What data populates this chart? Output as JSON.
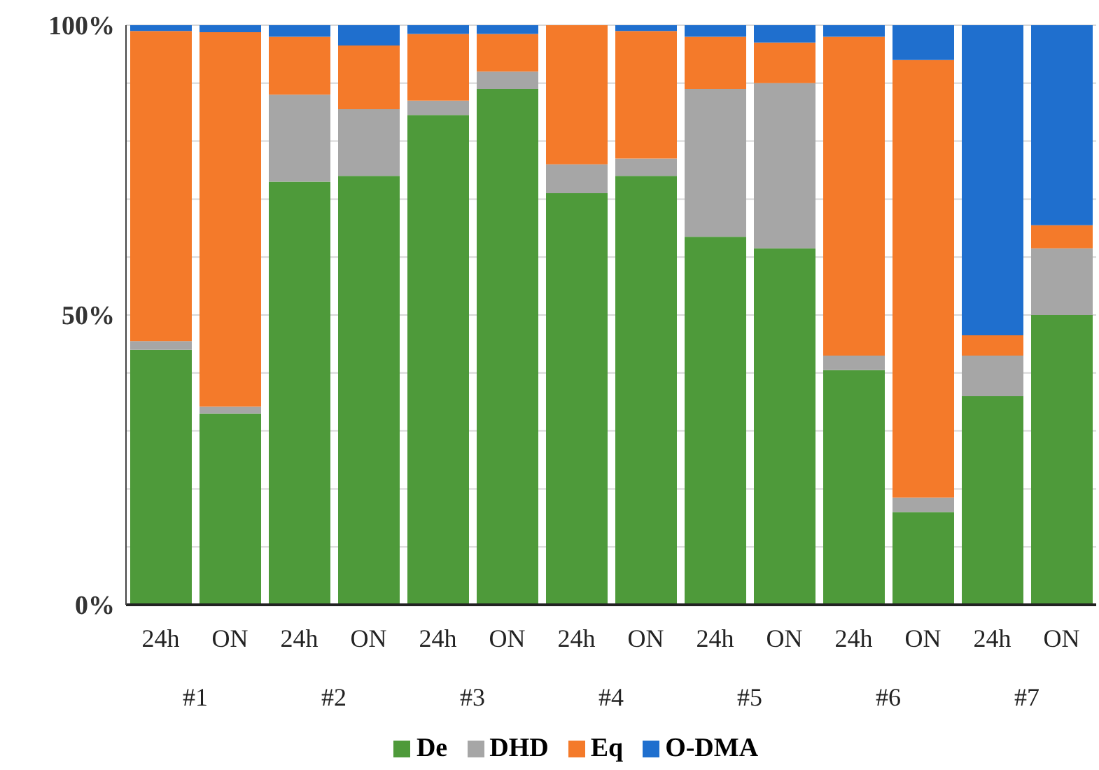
{
  "chart_data": {
    "type": "bar",
    "stacked": true,
    "categories": [
      "24h",
      "ON",
      "24h",
      "ON",
      "24h",
      "ON",
      "24h",
      "ON",
      "24h",
      "ON",
      "24h",
      "ON",
      "24h",
      "ON"
    ],
    "annotations": [
      "#1",
      "#2",
      "#3",
      "#4",
      "#5",
      "#6",
      "#7"
    ],
    "series": [
      {
        "name": "De",
        "color": "#4e9a3a",
        "values": [
          44,
          33,
          73,
          74,
          84.5,
          89,
          71,
          74,
          63.5,
          61.5,
          40.5,
          16,
          36,
          50
        ]
      },
      {
        "name": "DHD",
        "color": "#a6a6a6",
        "values": [
          1.5,
          1.2,
          15,
          11.5,
          2.5,
          3,
          5,
          3,
          25.5,
          28.5,
          2.5,
          2.5,
          7,
          11.5
        ]
      },
      {
        "name": "Eq",
        "color": "#f47a2a",
        "values": [
          53.5,
          64.6,
          10,
          11,
          11.5,
          6.5,
          24,
          22,
          9,
          7,
          55,
          75.5,
          3.5,
          4
        ]
      },
      {
        "name": "O-DMA",
        "color": "#1f6fce",
        "values": [
          1,
          1.2,
          2,
          3.5,
          1.5,
          1.5,
          0,
          1,
          2,
          3,
          2,
          6,
          53.5,
          34.5
        ]
      }
    ],
    "ylim": [
      0,
      100
    ],
    "yticks": [
      {
        "value": 0,
        "label": "0%"
      },
      {
        "value": 10,
        "label": null
      },
      {
        "value": 20,
        "label": null
      },
      {
        "value": 30,
        "label": null
      },
      {
        "value": 40,
        "label": null
      },
      {
        "value": 50,
        "label": "50%"
      },
      {
        "value": 60,
        "label": null
      },
      {
        "value": 70,
        "label": null
      },
      {
        "value": 80,
        "label": null
      },
      {
        "value": 90,
        "label": null
      },
      {
        "value": 100,
        "label": "100%"
      }
    ],
    "grid": "y",
    "legend": "bottom"
  }
}
